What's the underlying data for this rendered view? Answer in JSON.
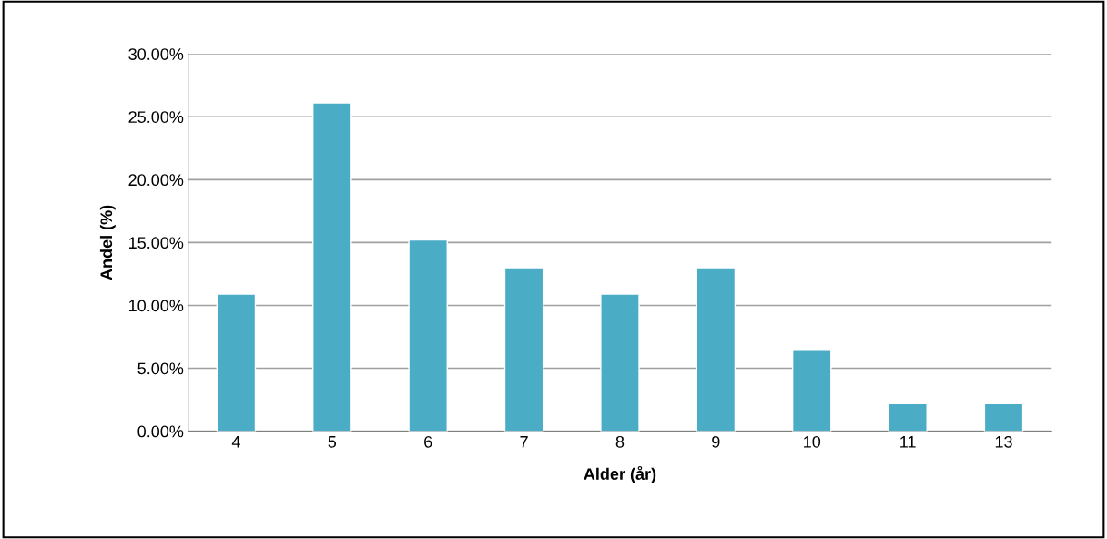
{
  "chart_data": {
    "type": "bar",
    "xlabel": "Alder (år)",
    "ylabel": "Andel (%)",
    "categories": [
      "4",
      "5",
      "6",
      "7",
      "8",
      "9",
      "10",
      "11",
      "13"
    ],
    "values": [
      10.9,
      26.1,
      15.2,
      13.0,
      10.9,
      13.0,
      6.5,
      2.2,
      2.2
    ],
    "color": "#4bacc6",
    "ylim": [
      0,
      30
    ],
    "yticks": [
      {
        "value": 0,
        "label": "0.00%"
      },
      {
        "value": 5,
        "label": "5.00%"
      },
      {
        "value": 10,
        "label": "10.00%"
      },
      {
        "value": 15,
        "label": "15.00%"
      },
      {
        "value": 20,
        "label": "20.00%"
      },
      {
        "value": 25,
        "label": "25.00%"
      },
      {
        "value": 30,
        "label": "30.00%"
      }
    ],
    "grid": "y",
    "legend": false
  }
}
